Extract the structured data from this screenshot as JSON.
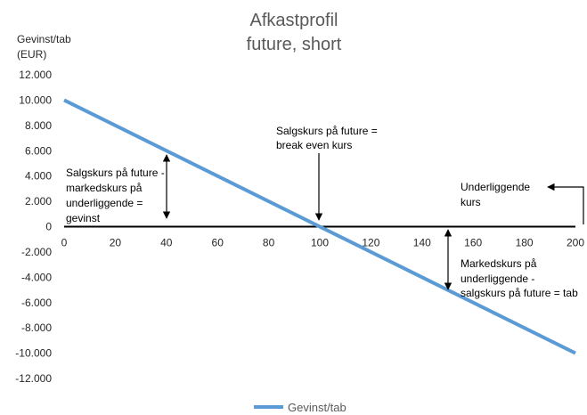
{
  "chart_data": {
    "type": "line",
    "title": [
      "Afkastprofil",
      "future, short"
    ],
    "ylabel": [
      "Gevinst/tab",
      "(EUR)"
    ],
    "xlabel": "",
    "x_ticks": [
      "0",
      "20",
      "40",
      "60",
      "80",
      "100",
      "120",
      "140",
      "160",
      "180",
      "200"
    ],
    "y_ticks": [
      "12.000",
      "10.000",
      "8.000",
      "6.000",
      "4.000",
      "2.000",
      "0",
      "-2.000",
      "-4.000",
      "-6.000",
      "-8.000",
      "-10.000",
      "-12.000"
    ],
    "xlim": [
      0,
      200
    ],
    "ylim": [
      -12000,
      12000
    ],
    "grid": false,
    "legend_position": "bottom",
    "series": [
      {
        "name": "Gevinst/tab",
        "color": "#5b9bd5",
        "x": [
          0,
          200
        ],
        "y": [
          10000,
          -10000
        ]
      }
    ],
    "annotations": {
      "gain": [
        "Salgskurs på future -",
        "markedskurs på",
        "underliggende =",
        "gevinst"
      ],
      "breakeven": [
        "Salgskurs på future =",
        "break even kurs"
      ],
      "underlying": [
        "Underliggende",
        "kurs"
      ],
      "loss": [
        "Markedskurs på",
        "underliggende -",
        "salgskurs på future = tab"
      ]
    }
  }
}
